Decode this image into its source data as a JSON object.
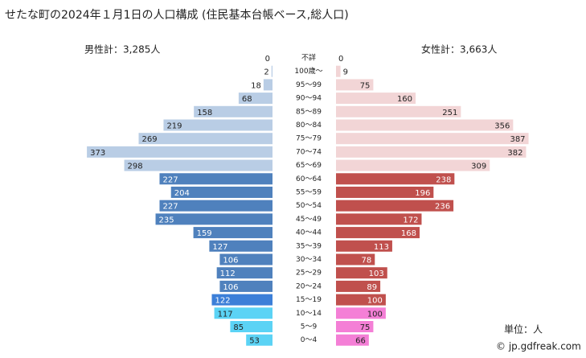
{
  "chart_data": {
    "type": "pyramid",
    "title": "せたな町の2024年１月1日の人口構成 (住民基本台帳ベース,総人口)",
    "male_total": "男性計：3,285人",
    "female_total": "女性計：3,663人",
    "unit": "単位：人",
    "credit": "© jp.gdfreak.com",
    "categories": [
      "不詳",
      "100歳～",
      "95～99",
      "90～94",
      "85～89",
      "80～84",
      "75～79",
      "70～74",
      "65～69",
      "60～64",
      "55～59",
      "50～54",
      "45～49",
      "40～44",
      "35～39",
      "30～34",
      "25～29",
      "20～24",
      "15～19",
      "10～14",
      "5～9",
      "0～4"
    ],
    "series": [
      {
        "name": "男性",
        "values": [
          0,
          2,
          18,
          68,
          158,
          219,
          269,
          373,
          298,
          227,
          204,
          227,
          235,
          159,
          127,
          106,
          112,
          106,
          122,
          117,
          85,
          53
        ],
        "colors": [
          "#b9cde5",
          "#b9cde5",
          "#b9cde5",
          "#b9cde5",
          "#b9cde5",
          "#b9cde5",
          "#b9cde5",
          "#b9cde5",
          "#b9cde5",
          "#4f81bd",
          "#4f81bd",
          "#4f81bd",
          "#4f81bd",
          "#4f81bd",
          "#4f81bd",
          "#4f81bd",
          "#4f81bd",
          "#4f81bd",
          "#3c7fd8",
          "#5bd3f5",
          "#5bd3f5",
          "#5bd3f5"
        ]
      },
      {
        "name": "女性",
        "values": [
          0,
          9,
          75,
          160,
          251,
          356,
          387,
          382,
          309,
          238,
          196,
          236,
          172,
          168,
          113,
          78,
          103,
          89,
          100,
          100,
          75,
          66
        ],
        "colors": [
          "#f2d5d6",
          "#f2d5d6",
          "#f2d5d6",
          "#f2d5d6",
          "#f2d5d6",
          "#f2d5d6",
          "#f2d5d6",
          "#f2d5d6",
          "#f2d5d6",
          "#c0504d",
          "#c0504d",
          "#c0504d",
          "#c0504d",
          "#c0504d",
          "#c0504d",
          "#c0504d",
          "#c0504d",
          "#c0504d",
          "#c0504d",
          "#f47fd6",
          "#f47fd6",
          "#f47fd6"
        ]
      }
    ]
  }
}
